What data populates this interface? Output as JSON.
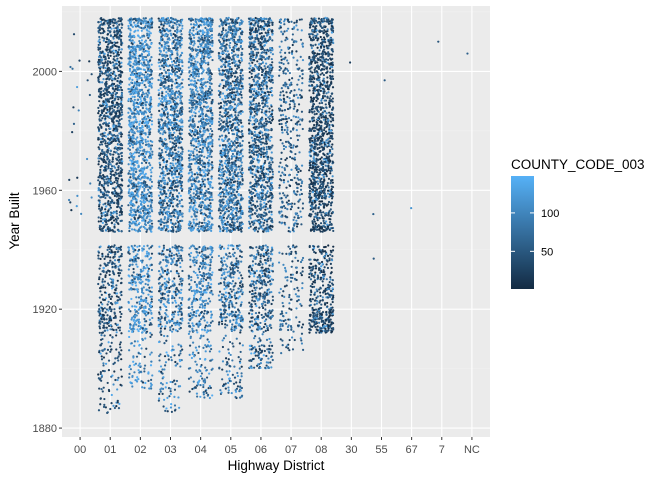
{
  "chart_data": {
    "type": "scatter",
    "subtype": "jitter",
    "xlabel": "Highway District",
    "ylabel": "Year Built",
    "categories": [
      "00",
      "01",
      "02",
      "03",
      "04",
      "05",
      "06",
      "07",
      "08",
      "30",
      "55",
      "67",
      "7",
      "NC"
    ],
    "ylim": [
      1877,
      2022
    ],
    "yticks": [
      1880,
      1920,
      1960,
      2000
    ],
    "grid": true,
    "legend": {
      "title": "COUNTY_CODE_003",
      "position": "right",
      "range": [
        1,
        148
      ],
      "ticks": [
        50,
        100
      ],
      "low_color": "#132B43",
      "high_color": "#56B1F7"
    },
    "series": [
      {
        "category": "00",
        "density": "sparse",
        "year_range": [
          1950,
          2015
        ],
        "count": 24
      },
      {
        "category": "01",
        "density": "dense",
        "year_range": [
          1885,
          2018
        ]
      },
      {
        "category": "02",
        "density": "dense",
        "year_range": [
          1893,
          2018
        ]
      },
      {
        "category": "03",
        "density": "dense",
        "year_range": [
          1883,
          2018
        ]
      },
      {
        "category": "04",
        "density": "dense",
        "year_range": [
          1890,
          2018
        ]
      },
      {
        "category": "05",
        "density": "dense",
        "year_range": [
          1890,
          2018
        ]
      },
      {
        "category": "06",
        "density": "dense",
        "year_range": [
          1900,
          2018
        ]
      },
      {
        "category": "07",
        "density": "medium",
        "year_range": [
          1903,
          2018
        ]
      },
      {
        "category": "08",
        "density": "dense",
        "year_range": [
          1912,
          2018
        ]
      },
      {
        "category": "30",
        "points": [
          2003
        ]
      },
      {
        "category": "55",
        "points": [
          1952,
          1937,
          1997
        ]
      },
      {
        "category": "67",
        "points": [
          1954
        ]
      },
      {
        "category": "7",
        "points": [
          2010
        ]
      },
      {
        "category": "NC",
        "points": [
          2006
        ]
      }
    ]
  },
  "colors": {
    "panel_background": "#EBEBEB",
    "grid_major": "#FFFFFF",
    "grid_minor": "#F2F2F2"
  }
}
